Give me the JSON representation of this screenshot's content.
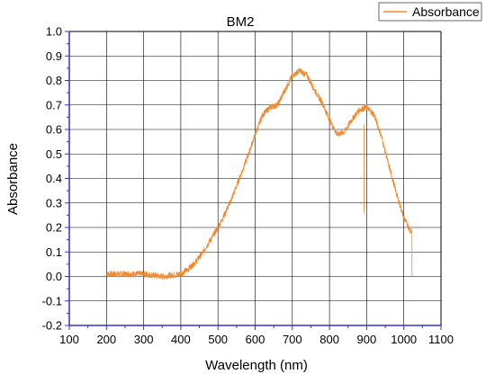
{
  "chart_data": {
    "type": "line",
    "title": "BM2",
    "xlabel": "Wavelength (nm)",
    "ylabel": "Absorbance",
    "xlim": [
      100,
      1100
    ],
    "ylim": [
      -0.2,
      1.0
    ],
    "xticks": [
      100,
      200,
      300,
      400,
      500,
      600,
      700,
      800,
      900,
      1000,
      1100
    ],
    "yticks": [
      -0.2,
      -0.1,
      0.0,
      0.1,
      0.2,
      0.3,
      0.4,
      0.5,
      0.6,
      0.7,
      0.8,
      0.9,
      1.0
    ],
    "xtick_labels": [
      "100",
      "200",
      "300",
      "400",
      "500",
      "600",
      "700",
      "800",
      "900",
      "1000",
      "1100"
    ],
    "ytick_labels": [
      "-0.2",
      "-0.1",
      "0.0",
      "0.1",
      "0.2",
      "0.3",
      "0.4",
      "0.5",
      "0.6",
      "0.7",
      "0.8",
      "0.9",
      "1.0"
    ],
    "grid": true,
    "legend": "top-right",
    "series": [
      {
        "name": "Absorbance",
        "color": "#f08a30",
        "x": [
          200,
          250,
          300,
          350,
          400,
          420,
          440,
          460,
          480,
          500,
          520,
          540,
          560,
          580,
          600,
          620,
          640,
          660,
          680,
          700,
          720,
          740,
          760,
          780,
          800,
          820,
          840,
          860,
          880,
          900,
          920,
          940,
          960,
          980,
          1000,
          1020
        ],
        "y": [
          0.01,
          0.01,
          0.01,
          0.0,
          0.01,
          0.03,
          0.06,
          0.1,
          0.15,
          0.2,
          0.26,
          0.33,
          0.41,
          0.49,
          0.58,
          0.66,
          0.69,
          0.7,
          0.76,
          0.82,
          0.84,
          0.82,
          0.76,
          0.71,
          0.64,
          0.58,
          0.59,
          0.64,
          0.68,
          0.69,
          0.66,
          0.57,
          0.45,
          0.34,
          0.24,
          0.18
        ]
      }
    ]
  }
}
